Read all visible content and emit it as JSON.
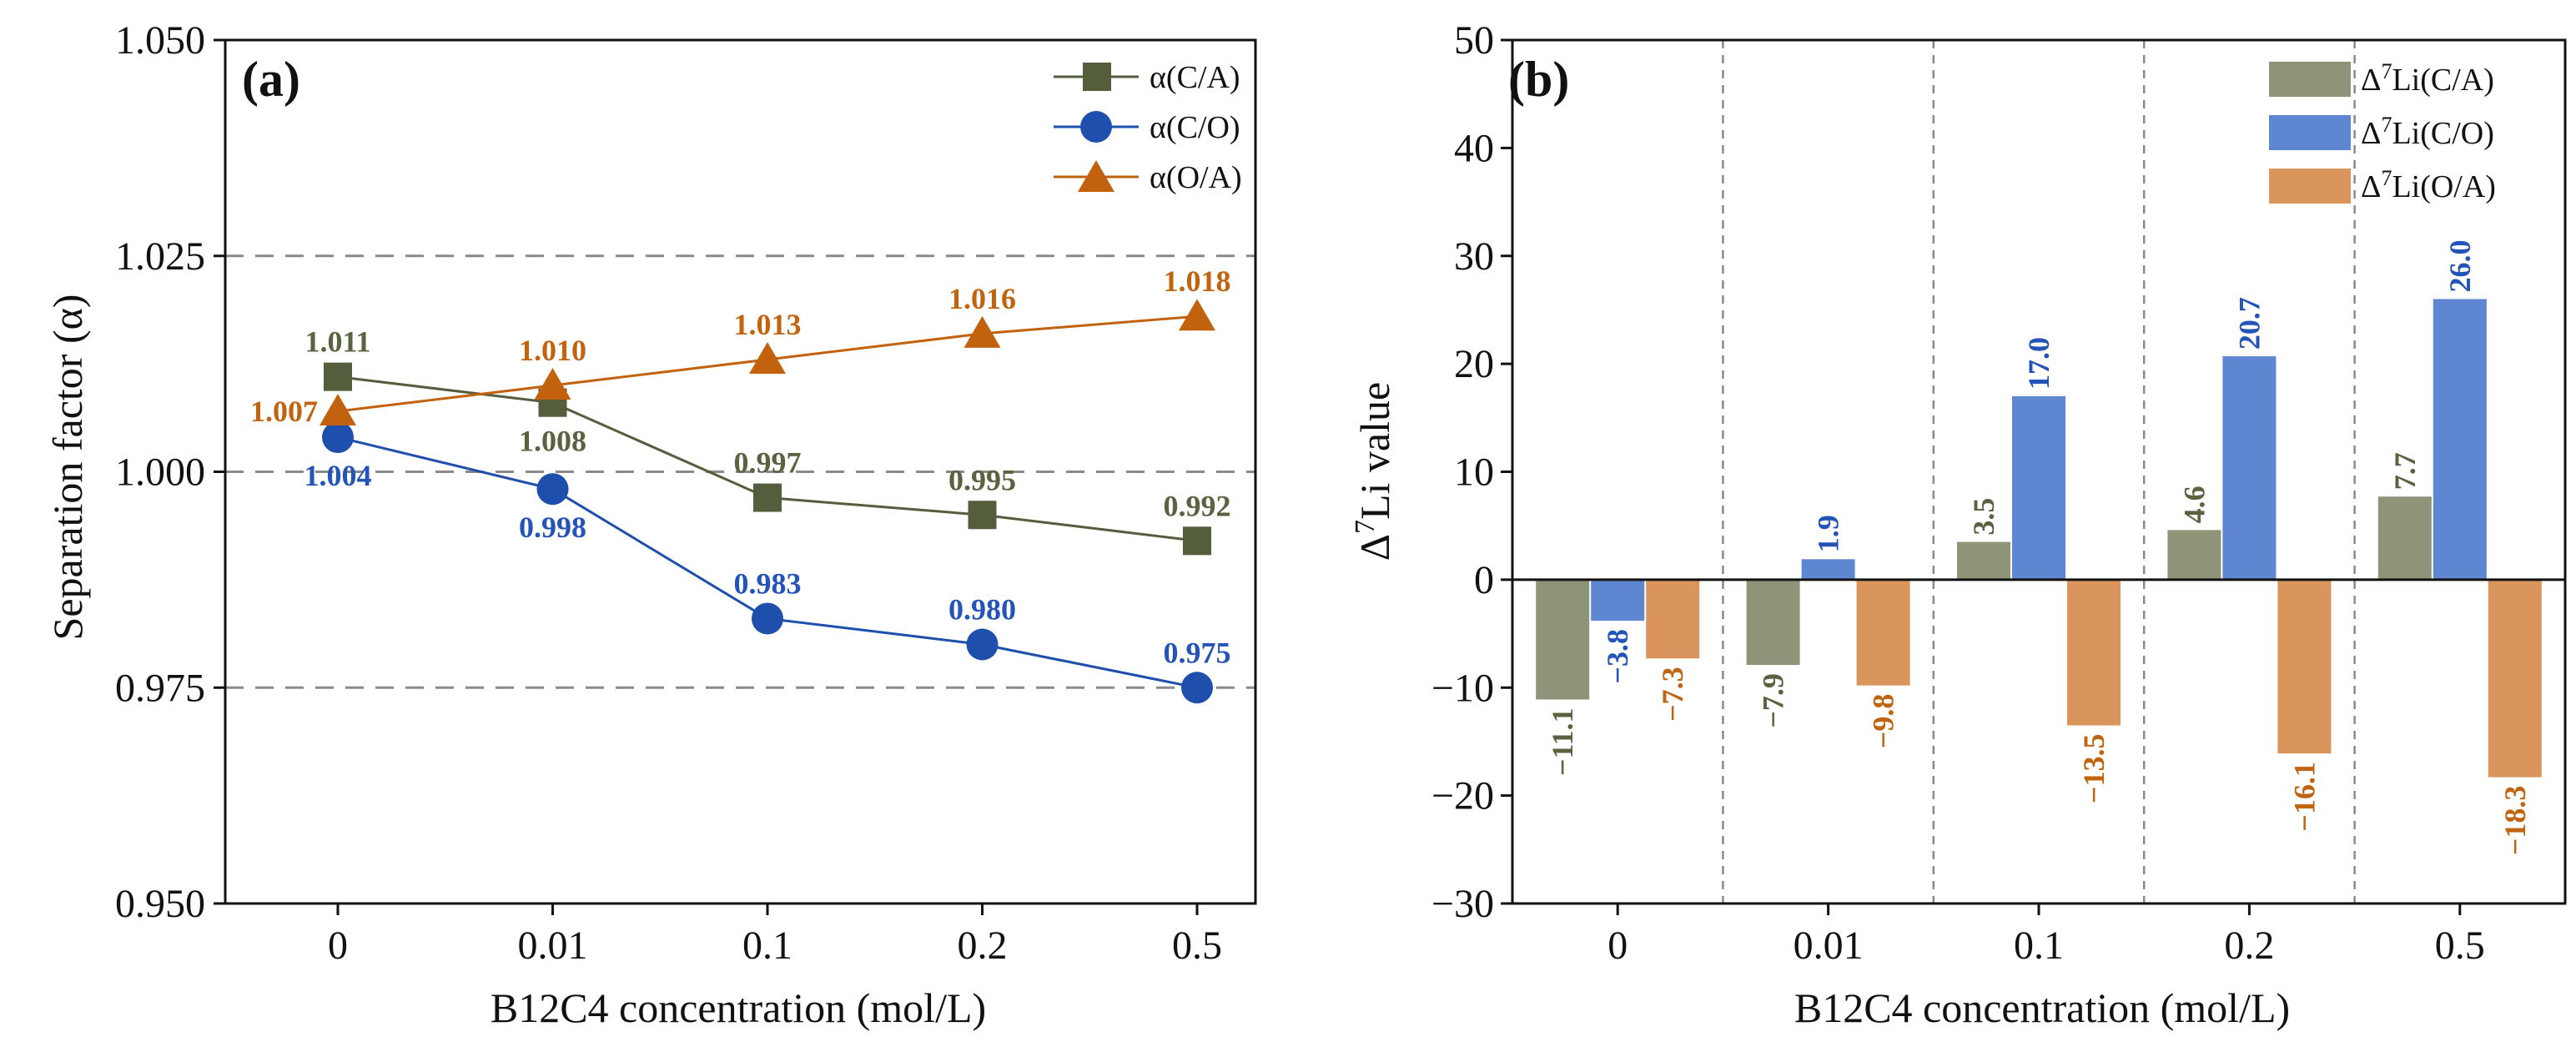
{
  "chart_data": [
    {
      "type": "line",
      "panel_label": "(a)",
      "categories": [
        "0",
        "0.01",
        "0.1",
        "0.2",
        "0.5"
      ],
      "xlabel": "B12C4 concentration (mol/L)",
      "ylabel": "Separation factor (α)",
      "ylim": [
        0.95,
        1.05
      ],
      "yticks": [
        "0.950",
        "0.975",
        "1.000",
        "1.025",
        "1.050"
      ],
      "reference_lines": [
        0.975,
        1.0,
        1.025
      ],
      "grid": false,
      "legend_position": "top-right",
      "series": [
        {
          "name": "α(C/A)",
          "marker": "square",
          "color": "#545d3c",
          "label_color": "#5a6340",
          "values": [
            1.011,
            1.008,
            0.997,
            0.995,
            0.992
          ],
          "labels": [
            "1.011",
            "1.008",
            "0.997",
            "0.995",
            "0.992"
          ],
          "label_pos": [
            "above",
            "below",
            "above",
            "above",
            "above"
          ]
        },
        {
          "name": "α(C/O)",
          "marker": "circle",
          "color": "#1f4fad",
          "label_color": "#2454b8",
          "values": [
            1.004,
            0.998,
            0.983,
            0.98,
            0.975
          ],
          "labels": [
            "1.004",
            "0.998",
            "0.983",
            "0.980",
            "0.975"
          ],
          "label_pos": [
            "below",
            "below",
            "above",
            "above",
            "above"
          ]
        },
        {
          "name": "α(O/A)",
          "marker": "triangle",
          "color": "#c2620e",
          "label_color": "#c0640f",
          "values": [
            1.007,
            1.01,
            1.013,
            1.016,
            1.018
          ],
          "labels": [
            "1.007",
            "1.010",
            "1.013",
            "1.016",
            "1.018"
          ],
          "label_pos": [
            "left",
            "above",
            "above",
            "above",
            "above"
          ]
        }
      ]
    },
    {
      "type": "bar",
      "panel_label": "(b)",
      "categories": [
        "0",
        "0.01",
        "0.1",
        "0.2",
        "0.5"
      ],
      "xlabel": "B12C4 concentration (mol/L)",
      "ylabel_prefix": "Δ",
      "ylabel_sup": "7",
      "ylabel_suffix": "Li value",
      "ylim": [
        -30,
        50
      ],
      "yticks": [
        "−30",
        "−20",
        "−10",
        "0",
        "10",
        "20",
        "30",
        "40",
        "50"
      ],
      "grid": false,
      "legend_position": "top-right",
      "series": [
        {
          "name_prefix": "Δ",
          "name_sup": "7",
          "name_suffix": "Li(C/A)",
          "color": "#8e9478",
          "label_color": "#5a6340",
          "values": [
            -11.1,
            -7.9,
            3.5,
            4.6,
            7.7
          ],
          "labels": [
            "−11.1",
            "−7.9",
            "3.5",
            "4.6",
            "7.7"
          ]
        },
        {
          "name_prefix": "Δ",
          "name_sup": "7",
          "name_suffix": "Li(C/O)",
          "color": "#5f86d1",
          "label_color": "#2454b8",
          "values": [
            -3.8,
            1.9,
            17.0,
            20.7,
            26.0
          ],
          "labels": [
            "−3.8",
            "1.9",
            "17.0",
            "20.7",
            "26.0"
          ]
        },
        {
          "name_prefix": "Δ",
          "name_sup": "7",
          "name_suffix": "Li(O/A)",
          "color": "#d9955c",
          "label_color": "#c0640f",
          "values": [
            -7.3,
            -9.8,
            -13.5,
            -16.1,
            -18.3
          ],
          "labels": [
            "−7.3",
            "−9.8",
            "−13.5",
            "−16.1",
            "−18.3"
          ]
        }
      ]
    }
  ]
}
